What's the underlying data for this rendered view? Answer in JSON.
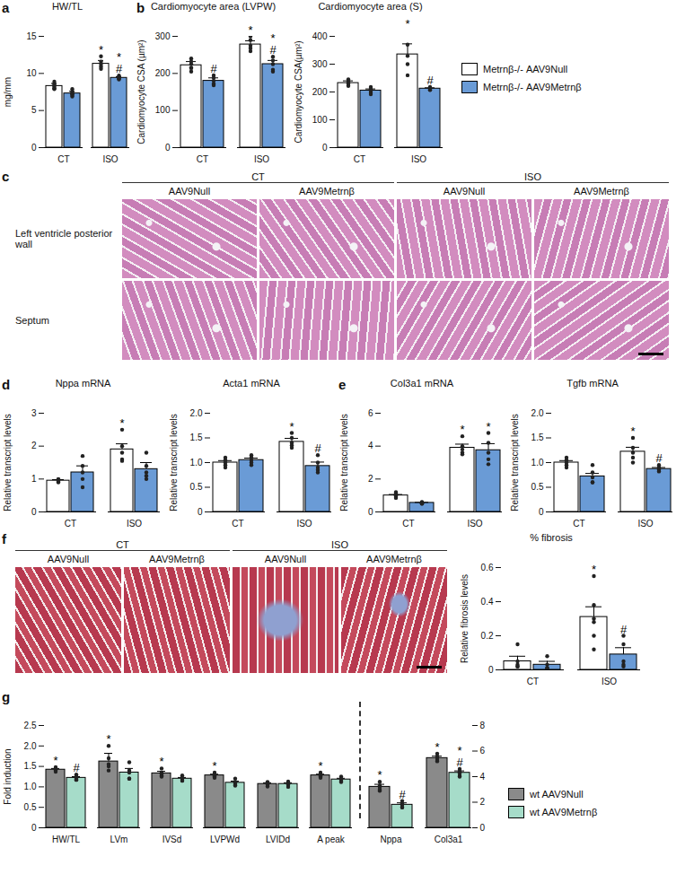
{
  "chart_data": [
    {
      "panel": "a",
      "type": "bar",
      "title": "HW/TL",
      "y_label": "mg/mm",
      "categories": [
        "CT",
        "ISO"
      ],
      "ylim": [
        0,
        15
      ],
      "yticks": [
        0,
        5,
        10,
        15
      ],
      "series": [
        {
          "name": "Metrnβ-/- AAV9Null",
          "color": "#ffffff",
          "values": [
            8.3,
            11.3
          ],
          "errors": [
            0.35,
            0.45
          ],
          "points": [
            [
              8.9,
              8.6,
              8.2,
              8.0,
              7.9,
              8.4
            ],
            [
              12.3,
              11.6,
              11.2,
              10.9,
              10.6
            ]
          ],
          "annotations": [
            null,
            "*"
          ]
        },
        {
          "name": "Metrnβ-/- AAV9Metrnβ",
          "color": "#6a9bd6",
          "values": [
            7.3,
            9.4
          ],
          "errors": [
            0.3,
            0.15
          ],
          "points": [
            [
              7.9,
              7.5,
              7.3,
              7.1,
              6.9,
              7.2
            ],
            [
              9.7,
              9.5,
              9.3,
              9.2,
              9.4
            ]
          ],
          "annotations": [
            null,
            "*\n#"
          ]
        }
      ]
    },
    {
      "panel": "b",
      "type": "bar",
      "title": "Cardiomyocyte area (LVPW)",
      "y_label": "Cardiomyocyte CSA (µm²)",
      "categories": [
        "CT",
        "ISO"
      ],
      "ylim": [
        0,
        300
      ],
      "yticks": [
        0,
        100,
        200,
        300
      ],
      "series": [
        {
          "name": "Metrnβ-/- AAV9Null",
          "color": "#ffffff",
          "values": [
            222,
            278
          ],
          "errors": [
            10,
            10
          ],
          "points": [
            [
              240,
              232,
              225,
              215,
              205,
              215
            ],
            [
              300,
              290,
              275,
              268,
              260
            ]
          ],
          "annotations": [
            null,
            "*"
          ]
        },
        {
          "name": "Metrnβ-/- AAV9Metrnβ",
          "color": "#6a9bd6",
          "values": [
            180,
            225
          ],
          "errors": [
            8,
            10
          ],
          "points": [
            [
              195,
              188,
              180,
              172,
              168
            ],
            [
              245,
              235,
              225,
              210,
              205
            ]
          ],
          "annotations": [
            "#",
            "*\n#"
          ]
        }
      ]
    },
    {
      "type": "bar",
      "title": "Cardiomyocyte area (S)",
      "y_label": "Cardiomyocyte CSA(µm²)",
      "categories": [
        "CT",
        "ISO"
      ],
      "ylim": [
        0,
        400
      ],
      "yticks": [
        0,
        100,
        200,
        300,
        400
      ],
      "legend": "right",
      "series": [
        {
          "name": "Metrnβ-/- AAV9Null",
          "color": "#ffffff",
          "values": [
            232,
            335
          ],
          "errors": [
            8,
            38
          ],
          "points": [
            [
              245,
              238,
              232,
              228,
              222
            ],
            [
              420,
              370,
              330,
              300,
              260
            ]
          ],
          "annotations": [
            null,
            "*"
          ]
        },
        {
          "name": "Metrnβ-/- AAV9Metrnβ",
          "color": "#6a9bd6",
          "values": [
            205,
            212
          ],
          "errors": [
            6,
            3
          ],
          "points": [
            [
              218,
              210,
              205,
              198,
              192
            ],
            [
              218,
              215,
              212,
              208,
              207
            ]
          ],
          "annotations": [
            null,
            "#"
          ]
        }
      ]
    },
    {
      "panel": "d",
      "type": "bar",
      "title": "Nppa mRNA",
      "y_label": "Relative transcript levels",
      "categories": [
        "CT",
        "ISO"
      ],
      "ylim": [
        0,
        3
      ],
      "yticks": [
        0,
        1,
        2,
        3
      ],
      "series": [
        {
          "name": "Metrnβ-/- AAV9Null",
          "color": "#ffffff",
          "values": [
            0.95,
            1.9
          ],
          "errors": [
            0.03,
            0.17
          ],
          "points": [
            [
              1.0,
              0.95,
              0.9,
              0.92,
              0.98
            ],
            [
              2.5,
              2.0,
              1.8,
              1.6,
              1.55
            ]
          ],
          "annotations": [
            null,
            "*"
          ]
        },
        {
          "name": "Metrnβ-/- AAV9Metrnβ",
          "color": "#6a9bd6",
          "values": [
            1.2,
            1.3
          ],
          "errors": [
            0.2,
            0.2
          ],
          "points": [
            [
              1.7,
              1.4,
              1.2,
              1.0,
              0.75
            ],
            [
              1.8,
              1.4,
              1.2,
              1.1,
              1.0
            ]
          ],
          "annotations": [
            null,
            null
          ]
        }
      ]
    },
    {
      "type": "bar",
      "title": "Acta1 mRNA",
      "y_label": "Relative transcript levels",
      "categories": [
        "CT",
        "ISO"
      ],
      "ylim": [
        0,
        2
      ],
      "yticks": [
        0,
        0.5,
        {
          "value": 1,
          "label": "1.0"
        },
        1.5,
        {
          "value": 2,
          "label": "2.0"
        }
      ],
      "series": [
        {
          "name": "Metrnβ-/- AAV9Null",
          "color": "#ffffff",
          "values": [
            1.0,
            1.42
          ],
          "errors": [
            0.04,
            0.07
          ],
          "points": [
            [
              1.1,
              1.05,
              1.0,
              0.95,
              0.9
            ],
            [
              1.6,
              1.5,
              1.4,
              1.35,
              1.3
            ]
          ],
          "annotations": [
            null,
            "*"
          ]
        },
        {
          "name": "Metrnβ-/- AAV9Metrnβ",
          "color": "#6a9bd6",
          "values": [
            1.05,
            0.93
          ],
          "errors": [
            0.04,
            0.08
          ],
          "points": [
            [
              1.15,
              1.1,
              1.05,
              1.0,
              0.95
            ],
            [
              1.15,
              1.0,
              0.9,
              0.85,
              0.8
            ]
          ],
          "annotations": [
            null,
            "#"
          ]
        }
      ]
    },
    {
      "panel": "e",
      "type": "bar",
      "title": "Col3a1 mRNA",
      "y_label": "Relative transcript levels",
      "categories": [
        "CT",
        "ISO"
      ],
      "ylim": [
        0,
        6
      ],
      "yticks": [
        0,
        2,
        4,
        6
      ],
      "series": [
        {
          "name": "Metrnβ-/- AAV9Null",
          "color": "#ffffff",
          "values": [
            1.0,
            3.9
          ],
          "errors": [
            0.06,
            0.22
          ],
          "points": [
            [
              1.2,
              1.1,
              1.0,
              0.9,
              0.85
            ],
            [
              4.6,
              4.0,
              3.8,
              3.6,
              3.5
            ]
          ],
          "annotations": [
            null,
            "*"
          ]
        },
        {
          "name": "Metrnβ-/- AAV9Metrnβ",
          "color": "#6a9bd6",
          "values": [
            0.55,
            3.75
          ],
          "errors": [
            0.03,
            0.4
          ],
          "points": [
            [
              0.6,
              0.58,
              0.55,
              0.5,
              0.5
            ],
            [
              4.8,
              4.2,
              3.6,
              3.2,
              2.9
            ]
          ],
          "annotations": [
            null,
            "*"
          ]
        }
      ]
    },
    {
      "type": "bar",
      "title": "Tgfb mRNA",
      "y_label": "Relative transcript levels",
      "categories": [
        "CT",
        "ISO"
      ],
      "ylim": [
        0,
        2
      ],
      "yticks": [
        0,
        0.5,
        {
          "value": 1,
          "label": "1.0"
        },
        1.5,
        {
          "value": 2,
          "label": "2.0"
        }
      ],
      "series": [
        {
          "name": "Metrnβ-/- AAV9Null",
          "color": "#ffffff",
          "values": [
            1.0,
            1.22
          ],
          "errors": [
            0.04,
            0.09
          ],
          "points": [
            [
              1.1,
              1.05,
              1.0,
              0.95,
              0.9
            ],
            [
              1.5,
              1.3,
              1.2,
              1.1,
              1.0
            ]
          ],
          "annotations": [
            null,
            "*"
          ]
        },
        {
          "name": "Metrnβ-/- AAV9Metrnβ",
          "color": "#6a9bd6",
          "values": [
            0.72,
            0.87
          ],
          "errors": [
            0.06,
            0.03
          ],
          "points": [
            [
              0.95,
              0.8,
              0.7,
              0.6,
              0.6
            ],
            [
              0.95,
              0.9,
              0.87,
              0.85,
              0.82
            ]
          ],
          "annotations": [
            null,
            "#"
          ]
        }
      ]
    },
    {
      "type": "bar",
      "title": "% fibrosis",
      "y_label": "Relative fibrosis levels",
      "categories": [
        "CT",
        "ISO"
      ],
      "ylim": [
        0,
        0.6
      ],
      "yticks": [
        0,
        0.2,
        0.4,
        0.6
      ],
      "series": [
        {
          "name": "Metrnβ-/- AAV9Null",
          "color": "#ffffff",
          "values": [
            0.05,
            0.31
          ],
          "errors": [
            0.03,
            0.06
          ],
          "points": [
            [
              0.15,
              0.05,
              0.03,
              0.02,
              0.02
            ],
            [
              0.55,
              0.38,
              0.3,
              0.28,
              0.2,
              0.12
            ]
          ],
          "annotations": [
            null,
            "*"
          ]
        },
        {
          "name": "Metrnβ-/- AAV9Metrnβ",
          "color": "#6a9bd6",
          "values": [
            0.03,
            0.09
          ],
          "errors": [
            0.02,
            0.04
          ],
          "points": [
            [
              0.08,
              0.03,
              0.01,
              0.01,
              0.01
            ],
            [
              0.2,
              0.15,
              0.05,
              0.03,
              0.02
            ]
          ],
          "annotations": [
            null,
            "#"
          ]
        }
      ]
    },
    {
      "panel": "g",
      "type": "bar",
      "y_label": "Fold induction",
      "categories": [
        "HW/TL",
        "LVm",
        "IVSd",
        "LVPWd",
        "LVIDd",
        "A peak",
        "Nppa",
        "Col3a1"
      ],
      "ylim": [
        0,
        2.5
      ],
      "yticks": [
        0,
        0.5,
        {
          "value": 1,
          "label": "1.0"
        },
        1.5,
        {
          "value": 2,
          "label": "2.0"
        },
        2.5
      ],
      "y2lim": [
        0,
        8
      ],
      "y2ticks": [
        0,
        2,
        4,
        6,
        8
      ],
      "legend": "lower right",
      "series": [
        {
          "name": "wt AAV9Null",
          "color": "#8a8a8a",
          "values": [
            1.42,
            1.62,
            1.33,
            1.28,
            1.07,
            1.28,
            null,
            null
          ],
          "errors": [
            0.03,
            0.2,
            0.05,
            0.03,
            0.03,
            0.03,
            null,
            null
          ],
          "points": [
            [
              1.48,
              1.45,
              1.42,
              1.4,
              1.37
            ],
            [
              2.0,
              1.7,
              1.55,
              1.5,
              1.4
            ],
            [
              1.45,
              1.35,
              1.32,
              1.28,
              1.25
            ],
            [
              1.35,
              1.3,
              1.28,
              1.25,
              1.22
            ],
            [
              1.12,
              1.1,
              1.07,
              1.05,
              1.01
            ],
            [
              1.35,
              1.3,
              1.28,
              1.25,
              1.22
            ],
            null,
            null
          ],
          "annotations": [
            "*",
            "*",
            "*",
            "*",
            null,
            "*",
            null,
            null
          ]
        },
        {
          "name": "wt AAV9Metrnβ",
          "color": "#a6dcc9",
          "values": [
            1.22,
            1.35,
            1.2,
            1.1,
            1.07,
            1.18,
            null,
            null
          ],
          "errors": [
            0.03,
            0.1,
            0.03,
            0.04,
            0.03,
            0.03,
            null,
            null
          ],
          "points": [
            [
              1.3,
              1.25,
              1.2,
              1.18,
              1.17
            ],
            [
              1.6,
              1.4,
              1.35,
              1.2,
              1.2
            ],
            [
              1.28,
              1.22,
              1.2,
              1.15,
              1.15
            ],
            [
              1.2,
              1.12,
              1.1,
              1.05,
              1.03
            ],
            [
              1.13,
              1.1,
              1.07,
              1.05,
              1.0
            ],
            [
              1.25,
              1.2,
              1.18,
              1.15,
              1.12
            ],
            null,
            null
          ],
          "annotations": [
            "#",
            null,
            null,
            null,
            null,
            null,
            null,
            null
          ]
        },
        {
          "name": "wt AAV9Null",
          "color": "#8a8a8a",
          "axis": "y2",
          "values": [
            null,
            null,
            null,
            null,
            null,
            null,
            3.2,
            5.45
          ],
          "errors": [
            null,
            null,
            null,
            null,
            null,
            null,
            0.2,
            0.15
          ],
          "points": [
            null,
            null,
            null,
            null,
            null,
            null,
            [
              3.6,
              3.3,
              3.2,
              3.0,
              2.9
            ],
            [
              5.8,
              5.6,
              5.45,
              5.3,
              5.2
            ]
          ],
          "annotations": [
            null,
            null,
            null,
            null,
            null,
            null,
            "*",
            "*"
          ]
        },
        {
          "name": "wt AAV9Metrnβ",
          "color": "#a6dcc9",
          "axis": "y2",
          "values": [
            null,
            null,
            null,
            null,
            null,
            null,
            1.8,
            4.3
          ],
          "errors": [
            null,
            null,
            null,
            null,
            null,
            null,
            0.15,
            0.15
          ],
          "points": [
            null,
            null,
            null,
            null,
            null,
            null,
            [
              2.1,
              1.9,
              1.8,
              1.6,
              1.6
            ],
            [
              4.6,
              4.4,
              4.3,
              4.1,
              4.0
            ]
          ],
          "annotations": [
            null,
            null,
            null,
            null,
            null,
            null,
            "#",
            "*\n#"
          ]
        }
      ]
    }
  ],
  "image_panels": [
    {
      "panel": "c",
      "column_groups": [
        "CT",
        "ISO"
      ],
      "columns": [
        "AAV9Null",
        "AAV9Metrnβ",
        "AAV9Null",
        "AAV9Metrnβ"
      ],
      "rows": [
        "Left ventricle posterior wall",
        "Septum"
      ]
    },
    {
      "panel": "f",
      "column_groups": [
        "CT",
        "ISO"
      ],
      "columns": [
        "AAV9Null",
        "AAV9Metrnβ",
        "AAV9Null",
        "AAV9Metrnβ"
      ]
    }
  ]
}
